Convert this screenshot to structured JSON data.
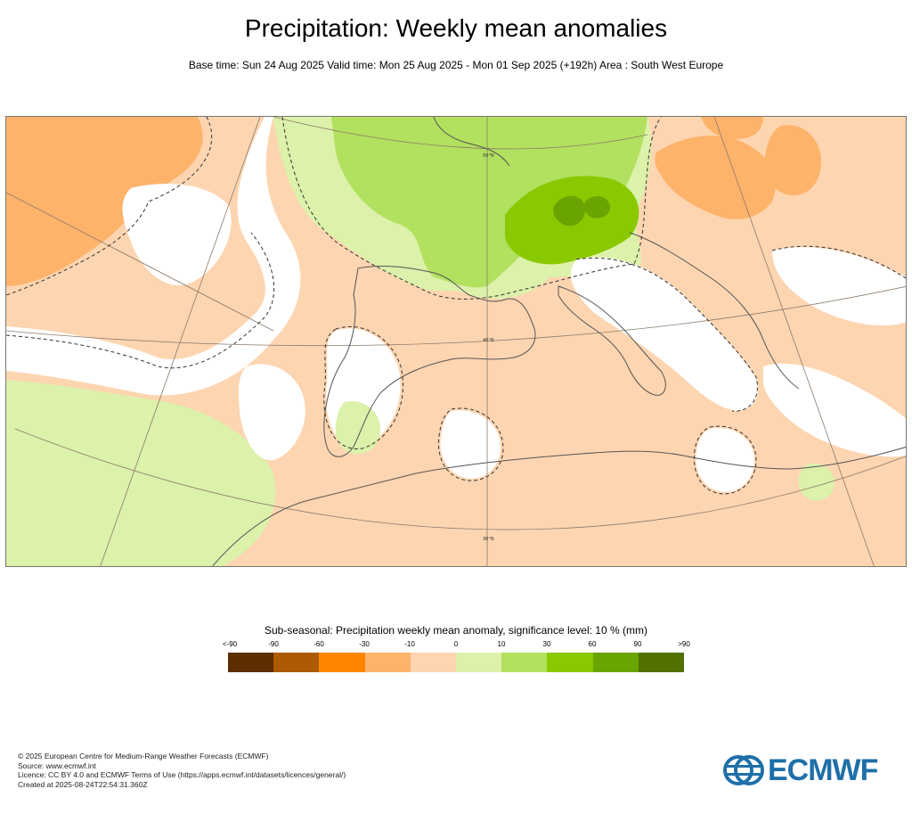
{
  "title": "Precipitation: Weekly mean anomalies",
  "subtitle": "Base time: Sun 24 Aug 2025 Valid time: Mon 25 Aug 2025 - Mon 01 Sep 2025 (+192h) Area : South West Europe",
  "map": {
    "lat_labels": [
      "50°N",
      "40°N",
      "30°N"
    ]
  },
  "legend": {
    "title": "Sub-seasonal: Precipitation weekly mean anomaly, significance level: 10 % (mm)",
    "labels": [
      "<-90",
      "-90",
      "-60",
      "-30",
      "-10",
      "0",
      "10",
      "30",
      "60",
      "90",
      ">90"
    ],
    "colors": [
      "#5c2e00",
      "#ad5a05",
      "#ff8500",
      "#feb36b",
      "#fdd5b0",
      "#dcf1aa",
      "#b2e05f",
      "#8ac800",
      "#6aa400",
      "#517100"
    ]
  },
  "footer": {
    "line1": "© 2025 European Centre for Medium-Range Weather Forecasts (ECMWF)",
    "line2": "Source: www.ecmwf.int",
    "line3": "Licence: CC BY 4.0 and ECMWF Terms of Use (https://apps.ecmwf.int/datasets/licences/general/)",
    "line4": "Created at 2025-08-24T22:54:31.360Z"
  },
  "logo": {
    "text": "ECMWF",
    "color": "#1f6fa8"
  }
}
